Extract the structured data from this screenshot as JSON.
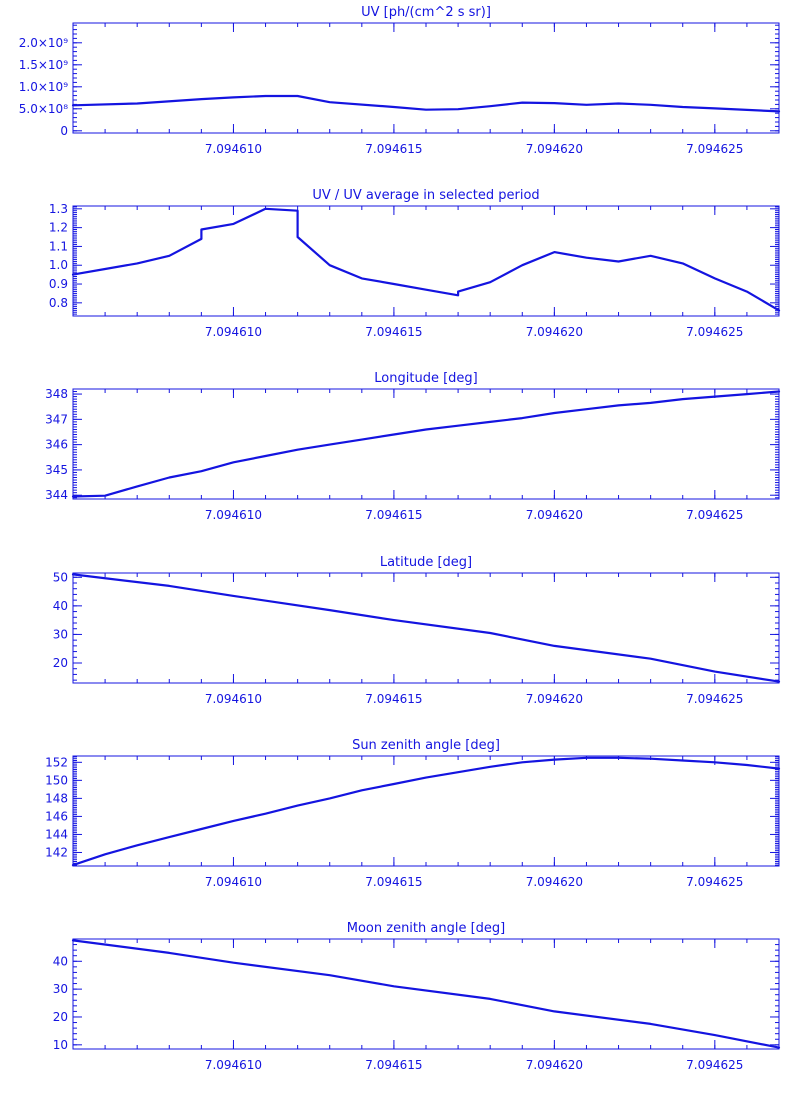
{
  "theme": {
    "ink": "#1414e0",
    "background": "#ffffff"
  },
  "x_axis": {
    "range": [
      7.094605,
      7.094627
    ],
    "ticks": [
      7.09461,
      7.094615,
      7.09462,
      7.094625
    ],
    "tick_labels": [
      "7.094610",
      "7.094615",
      "7.094620",
      "7.094625"
    ]
  },
  "chart_data": [
    {
      "type": "line",
      "title": "UV [ph/(cm^2 s sr)]",
      "xlabel": "",
      "ylabel": "",
      "ylim": [
        -50000000,
        2450000000
      ],
      "yticks": [
        0,
        500000000,
        1000000000,
        1500000000,
        2000000000
      ],
      "ytick_labels": [
        "0",
        "5.0×10⁸",
        "1.0×10⁹",
        "1.5×10⁹",
        "2.0×10⁹"
      ],
      "y_minor_step": 100000000,
      "x": [
        7.094605,
        7.094607,
        7.094609,
        7.09461,
        7.094611,
        7.094612,
        7.094613,
        7.094615,
        7.094616,
        7.094617,
        7.094618,
        7.094619,
        7.09462,
        7.094621,
        7.094622,
        7.094623,
        7.094624,
        7.094625,
        7.094627
      ],
      "y": [
        580000000,
        620000000,
        720000000,
        760000000,
        790000000,
        790000000,
        650000000,
        540000000,
        480000000,
        490000000,
        560000000,
        640000000,
        630000000,
        590000000,
        620000000,
        590000000,
        540000000,
        510000000,
        440000000
      ]
    },
    {
      "type": "line",
      "title": "UV / UV average in selected period",
      "xlabel": "",
      "ylabel": "",
      "ylim": [
        0.73,
        1.315
      ],
      "yticks": [
        0.8,
        0.9,
        1.0,
        1.1,
        1.2,
        1.3
      ],
      "ytick_labels": [
        "0.8",
        "0.9",
        "1.0",
        "1.1",
        "1.2",
        "1.3"
      ],
      "y_minor_step": 0.01,
      "x": [
        7.094605,
        7.094606,
        7.094607,
        7.094608,
        7.094609,
        7.094609,
        7.09461,
        7.094611,
        7.094612,
        7.094612,
        7.094613,
        7.094614,
        7.094615,
        7.094616,
        7.094617,
        7.094617,
        7.094618,
        7.094619,
        7.09462,
        7.094621,
        7.094622,
        7.094623,
        7.094624,
        7.094625,
        7.094626,
        7.094627
      ],
      "y": [
        0.95,
        0.98,
        1.01,
        1.05,
        1.14,
        1.19,
        1.22,
        1.3,
        1.29,
        1.15,
        1.0,
        0.93,
        0.9,
        0.87,
        0.84,
        0.86,
        0.91,
        1.0,
        1.07,
        1.04,
        1.02,
        1.05,
        1.01,
        0.93,
        0.86,
        0.76
      ]
    },
    {
      "type": "line",
      "title": "Longitude [deg]",
      "xlabel": "",
      "ylabel": "",
      "ylim": [
        343.85,
        348.2
      ],
      "yticks": [
        344,
        345,
        346,
        347,
        348
      ],
      "ytick_labels": [
        "344",
        "345",
        "346",
        "347",
        "348"
      ],
      "y_minor_step": 0.1,
      "x": [
        7.094605,
        7.094606,
        7.094607,
        7.094608,
        7.094609,
        7.09461,
        7.094611,
        7.094612,
        7.094613,
        7.094614,
        7.094615,
        7.094616,
        7.094617,
        7.094618,
        7.094619,
        7.09462,
        7.094621,
        7.094622,
        7.094623,
        7.094624,
        7.094625,
        7.094626,
        7.094627
      ],
      "y": [
        343.95,
        343.98,
        344.35,
        344.7,
        344.95,
        345.3,
        345.55,
        345.8,
        346.0,
        346.2,
        346.4,
        346.6,
        346.75,
        346.9,
        347.05,
        347.25,
        347.4,
        347.55,
        347.65,
        347.8,
        347.9,
        348.0,
        348.1
      ]
    },
    {
      "type": "line",
      "title": "Latitude [deg]",
      "xlabel": "",
      "ylabel": "",
      "ylim": [
        13,
        51.5
      ],
      "yticks": [
        20,
        30,
        40,
        50
      ],
      "ytick_labels": [
        "20",
        "30",
        "40",
        "50"
      ],
      "y_minor_step": 2,
      "x": [
        7.094605,
        7.094608,
        7.09461,
        7.094613,
        7.094615,
        7.094618,
        7.09462,
        7.094623,
        7.094625,
        7.094627
      ],
      "y": [
        51.0,
        47.0,
        43.5,
        38.5,
        35.0,
        30.5,
        26.0,
        21.5,
        17.0,
        13.5
      ]
    },
    {
      "type": "line",
      "title": "Sun zenith angle [deg]",
      "xlabel": "",
      "ylabel": "",
      "ylim": [
        140.5,
        152.7
      ],
      "yticks": [
        142,
        144,
        146,
        148,
        150,
        152
      ],
      "ytick_labels": [
        "142",
        "144",
        "146",
        "148",
        "150",
        "152"
      ],
      "y_minor_step": 0.2,
      "x": [
        7.094605,
        7.094606,
        7.094607,
        7.094608,
        7.094609,
        7.09461,
        7.094611,
        7.094612,
        7.094613,
        7.094614,
        7.094615,
        7.094616,
        7.094617,
        7.094618,
        7.094619,
        7.09462,
        7.094621,
        7.094622,
        7.094623,
        7.094624,
        7.094625,
        7.094626,
        7.094627
      ],
      "y": [
        140.6,
        141.8,
        142.8,
        143.7,
        144.6,
        145.5,
        146.3,
        147.2,
        148.0,
        148.9,
        149.6,
        150.3,
        150.9,
        151.5,
        152.0,
        152.3,
        152.5,
        152.5,
        152.4,
        152.2,
        152.0,
        151.7,
        151.3
      ]
    },
    {
      "type": "line",
      "title": "Moon zenith angle [deg]",
      "xlabel": "",
      "ylabel": "",
      "ylim": [
        8.5,
        48
      ],
      "yticks": [
        10,
        20,
        30,
        40
      ],
      "ytick_labels": [
        "10",
        "20",
        "30",
        "40"
      ],
      "y_minor_step": 2,
      "x": [
        7.094605,
        7.094608,
        7.09461,
        7.094613,
        7.094615,
        7.094618,
        7.09462,
        7.094623,
        7.094625,
        7.094627
      ],
      "y": [
        47.5,
        43.0,
        39.5,
        35.0,
        31.0,
        26.5,
        22.0,
        17.5,
        13.5,
        9.0
      ]
    }
  ]
}
